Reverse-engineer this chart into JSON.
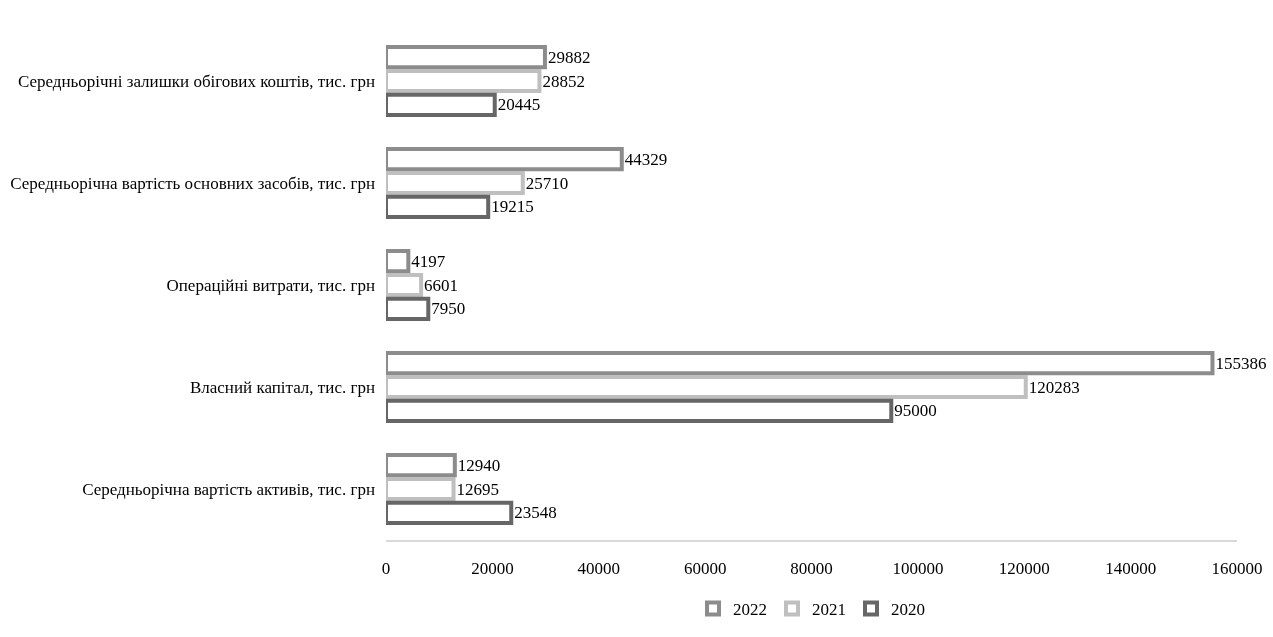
{
  "chart_data": {
    "type": "bar",
    "orientation": "horizontal",
    "categories": [
      "Середньорічні залишки обігових коштів, тис. грн",
      "Середньорічна вартість основних засобів, тис. грн",
      "Операційні витрати, тис. грн",
      "Власний капітал, тис. грн",
      "Середньорічна вартість активів, тис. грн"
    ],
    "series": [
      {
        "name": "2022",
        "color": "#8c8c8c",
        "values": [
          29882,
          44329,
          4197,
          155386,
          12940
        ]
      },
      {
        "name": "2021",
        "color": "#bfbfbf",
        "values": [
          28852,
          25710,
          6601,
          120283,
          12695
        ]
      },
      {
        "name": "2020",
        "color": "#666666",
        "values": [
          20445,
          19215,
          7950,
          95000,
          23548
        ]
      }
    ],
    "xlim": [
      0,
      160000
    ],
    "xticks": [
      0,
      20000,
      40000,
      60000,
      80000,
      100000,
      120000,
      140000,
      160000
    ],
    "data_labels": true,
    "legend": "bottom"
  }
}
